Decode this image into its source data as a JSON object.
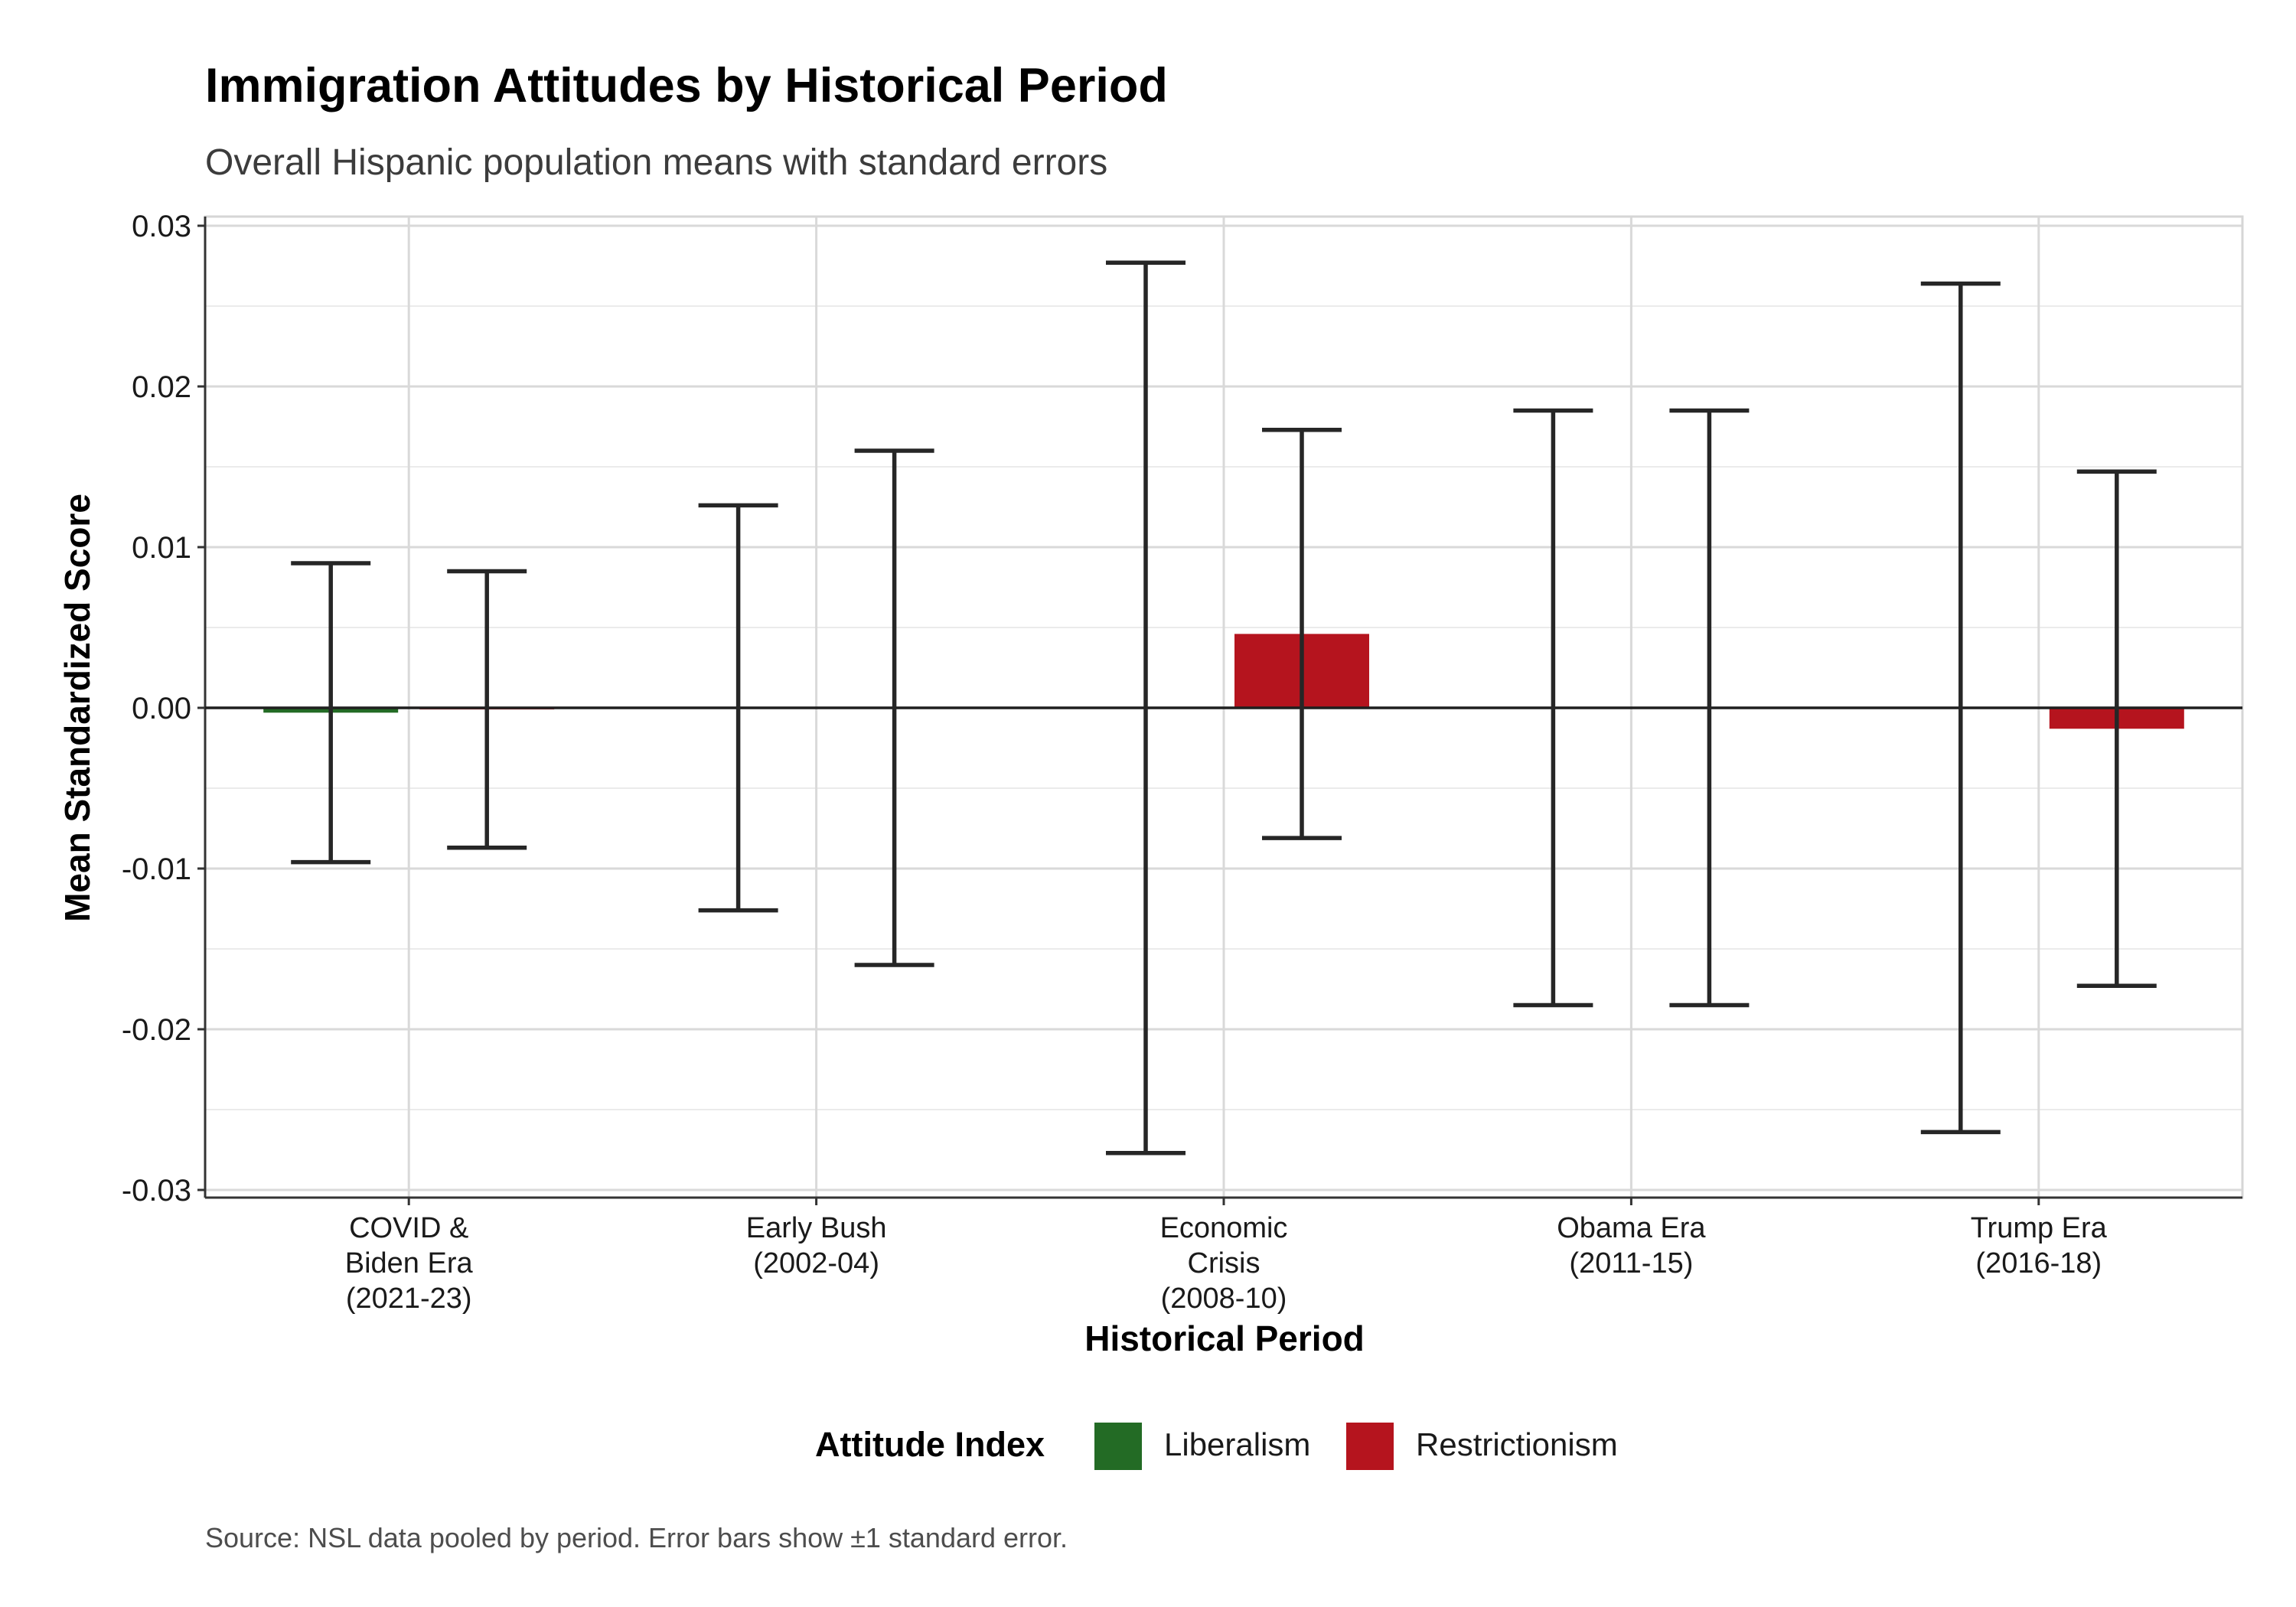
{
  "chart_data": {
    "type": "bar",
    "title": "Immigration Attitudes by Historical Period",
    "subtitle": "Overall Hispanic population means with standard errors",
    "xlabel": "Historical Period",
    "ylabel": "Mean Standardized Score",
    "categories": [
      [
        "COVID &",
        "Biden Era",
        "(2021-23)"
      ],
      [
        "Early Bush",
        "(2002-04)"
      ],
      [
        "Economic",
        "Crisis",
        "(2008-10)"
      ],
      [
        "Obama Era",
        "(2011-15)"
      ],
      [
        "Trump Era",
        "(2016-18)"
      ]
    ],
    "ylim": [
      -0.03,
      0.03
    ],
    "yticks": [
      0.03,
      0.02,
      0.01,
      0.0,
      -0.01,
      -0.02,
      -0.03
    ],
    "ytick_labels": [
      "0.03",
      "0.02",
      "0.01",
      "0.00",
      "-0.01",
      "-0.02",
      "-0.03"
    ],
    "grid": true,
    "legend": {
      "title": "Attitude Index",
      "position": "bottom"
    },
    "series": [
      {
        "name": "Liberalism",
        "color": "#236B25",
        "values": [
          -0.0003,
          0.0,
          0.0,
          0.0,
          0.0
        ],
        "se": [
          0.0093,
          0.0126,
          0.0277,
          0.0185,
          0.0264
        ]
      },
      {
        "name": "Restrictionism",
        "color": "#B5141E",
        "values": [
          -0.0001,
          0.0,
          0.0046,
          0.0,
          -0.0013
        ],
        "se": [
          0.0086,
          0.016,
          0.0127,
          0.0185,
          0.016
        ]
      }
    ],
    "caption": "Source: NSL data pooled by period. Error bars show ±1 standard error."
  }
}
